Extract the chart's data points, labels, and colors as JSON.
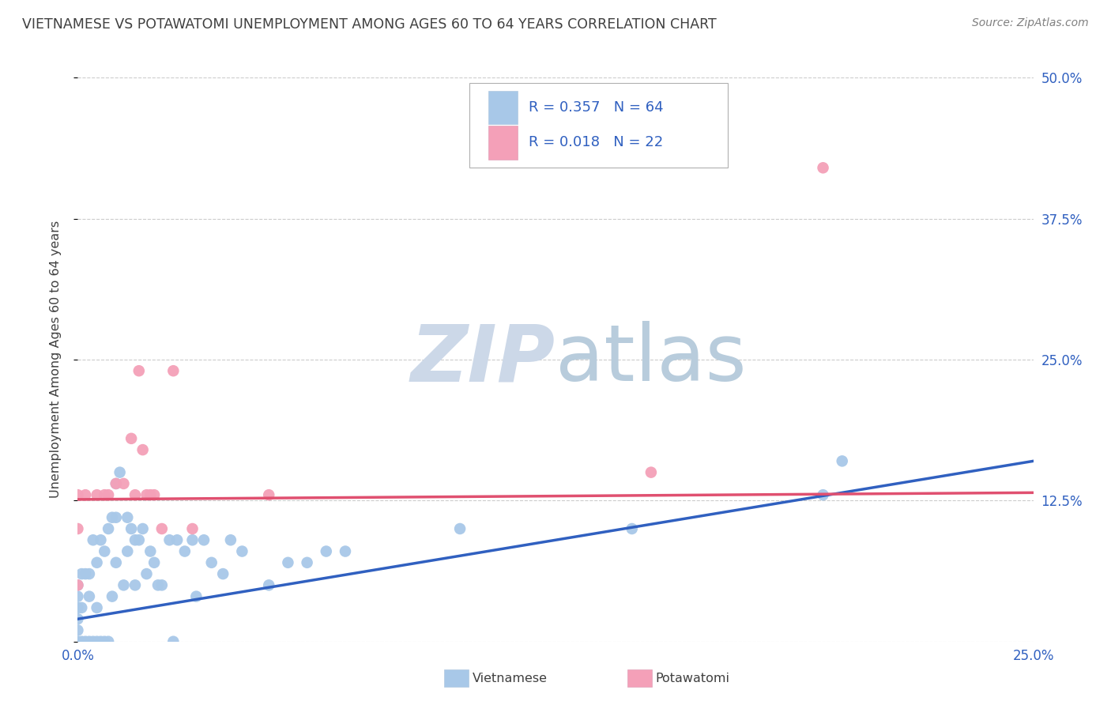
{
  "title": "VIETNAMESE VS POTAWATOMI UNEMPLOYMENT AMONG AGES 60 TO 64 YEARS CORRELATION CHART",
  "source": "Source: ZipAtlas.com",
  "ylabel": "Unemployment Among Ages 60 to 64 years",
  "xlim": [
    0.0,
    0.25
  ],
  "ylim": [
    0.0,
    0.5
  ],
  "xticks": [
    0.0,
    0.05,
    0.1,
    0.15,
    0.2,
    0.25
  ],
  "xtick_labels": [
    "0.0%",
    "",
    "",
    "",
    "",
    "25.0%"
  ],
  "yticks_right": [
    0.0,
    0.125,
    0.25,
    0.375,
    0.5
  ],
  "ytick_labels_right": [
    "",
    "12.5%",
    "25.0%",
    "37.5%",
    "50.0%"
  ],
  "viet_R": 0.357,
  "viet_N": 64,
  "pota_R": 0.018,
  "pota_N": 22,
  "viet_color": "#a8c8e8",
  "pota_color": "#f4a0b8",
  "viet_line_color": "#3060c0",
  "pota_line_color": "#e05070",
  "legend_R_N_color": "#3060c0",
  "title_color": "#404040",
  "source_color": "#808080",
  "axis_label_color": "#404040",
  "tick_color": "#3060c0",
  "grid_color": "#cccccc",
  "watermark_color": "#d8e4f0",
  "viet_x": [
    0.0,
    0.0,
    0.0,
    0.0,
    0.0,
    0.0,
    0.001,
    0.001,
    0.001,
    0.002,
    0.002,
    0.003,
    0.003,
    0.003,
    0.004,
    0.004,
    0.005,
    0.005,
    0.005,
    0.006,
    0.006,
    0.007,
    0.007,
    0.008,
    0.008,
    0.009,
    0.009,
    0.01,
    0.01,
    0.01,
    0.011,
    0.012,
    0.013,
    0.013,
    0.014,
    0.015,
    0.015,
    0.016,
    0.017,
    0.018,
    0.019,
    0.02,
    0.021,
    0.022,
    0.024,
    0.025,
    0.026,
    0.028,
    0.03,
    0.031,
    0.033,
    0.035,
    0.038,
    0.04,
    0.043,
    0.05,
    0.055,
    0.06,
    0.065,
    0.07,
    0.1,
    0.145,
    0.195,
    0.2
  ],
  "viet_y": [
    0.0,
    0.01,
    0.02,
    0.03,
    0.04,
    0.05,
    0.0,
    0.03,
    0.06,
    0.0,
    0.06,
    0.0,
    0.04,
    0.06,
    0.0,
    0.09,
    0.0,
    0.03,
    0.07,
    0.0,
    0.09,
    0.0,
    0.08,
    0.0,
    0.1,
    0.04,
    0.11,
    0.07,
    0.11,
    0.14,
    0.15,
    0.05,
    0.08,
    0.11,
    0.1,
    0.05,
    0.09,
    0.09,
    0.1,
    0.06,
    0.08,
    0.07,
    0.05,
    0.05,
    0.09,
    0.0,
    0.09,
    0.08,
    0.09,
    0.04,
    0.09,
    0.07,
    0.06,
    0.09,
    0.08,
    0.05,
    0.07,
    0.07,
    0.08,
    0.08,
    0.1,
    0.1,
    0.13,
    0.16
  ],
  "pota_x": [
    0.0,
    0.0,
    0.0,
    0.002,
    0.005,
    0.007,
    0.008,
    0.01,
    0.012,
    0.014,
    0.015,
    0.016,
    0.017,
    0.018,
    0.019,
    0.02,
    0.022,
    0.025,
    0.03,
    0.05,
    0.15,
    0.195
  ],
  "pota_y": [
    0.05,
    0.1,
    0.13,
    0.13,
    0.13,
    0.13,
    0.13,
    0.14,
    0.14,
    0.18,
    0.13,
    0.24,
    0.17,
    0.13,
    0.13,
    0.13,
    0.1,
    0.24,
    0.1,
    0.13,
    0.15,
    0.42
  ],
  "viet_line_x": [
    0.0,
    0.25
  ],
  "viet_line_y": [
    0.02,
    0.16
  ],
  "pota_line_x": [
    0.0,
    0.25
  ],
  "pota_line_y": [
    0.126,
    0.132
  ]
}
